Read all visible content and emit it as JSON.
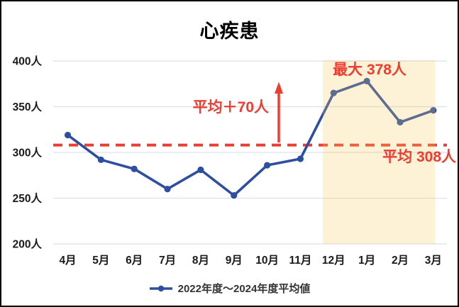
{
  "chart_data": {
    "type": "line",
    "title": "心疾患",
    "categories": [
      "4月",
      "5月",
      "6月",
      "7月",
      "8月",
      "9月",
      "10月",
      "11月",
      "12月",
      "1月",
      "2月",
      "3月"
    ],
    "series": [
      {
        "name": "2022年度～2024年度平均値",
        "values": [
          319,
          292,
          282,
          260,
          281,
          253,
          286,
          293,
          365,
          378,
          333,
          346
        ],
        "color": "#2e4ea0"
      }
    ],
    "ylim": [
      200,
      400
    ],
    "yticks": [
      400,
      350,
      300,
      250,
      200
    ],
    "ytick_labels": [
      "400人",
      "350人",
      "300人",
      "250人",
      "200人"
    ],
    "grid": true,
    "gridline_color": "#d9e1f1",
    "average_line": {
      "value": 308,
      "label": "平均 308人",
      "style": "dashed",
      "color": "#ed3d31"
    },
    "annotations": {
      "avg_plus_arrow": {
        "text": "平均＋70人",
        "color": "#ed3d31"
      },
      "max_label": {
        "text": "最大 378人",
        "value": 378,
        "color": "#ed3d31"
      },
      "avg_label": {
        "text": "平均 308人",
        "value": 308,
        "color": "#ed3d31"
      }
    },
    "highlight_band": {
      "months": [
        "12月",
        "1月",
        "2月",
        "3月"
      ],
      "fill": "rgba(247,200,90,0.25)",
      "solid_equivalent": "#fdf1d6"
    },
    "legend": {
      "label": "2022年度～2024年度平均値",
      "marker_color": "#2e4ea0"
    }
  }
}
